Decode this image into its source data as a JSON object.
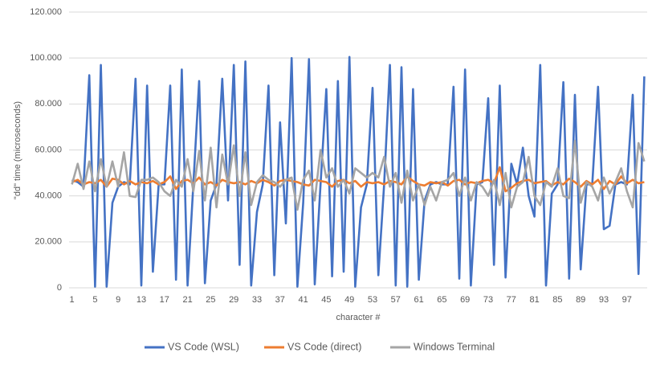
{
  "chart_data": {
    "type": "line",
    "x_label": "character #",
    "y_label": "\"dd\" time (microseconds)",
    "ylim": [
      0,
      120000
    ],
    "yticks": [
      0,
      {
        "value": 20000,
        "label": "20.000"
      },
      {
        "value": 40000,
        "label": "40.000"
      },
      {
        "value": 60000,
        "label": "60.000"
      },
      {
        "value": 80000,
        "label": "80.000"
      },
      {
        "value": 100000,
        "label": "100.000"
      },
      {
        "value": 120000,
        "label": "120.000"
      }
    ],
    "grid": true,
    "legend": "bottom",
    "categories": [
      "1",
      null,
      null,
      null,
      "5",
      null,
      null,
      null,
      "9",
      null,
      null,
      null,
      "13",
      null,
      null,
      null,
      "17",
      null,
      null,
      null,
      "21",
      null,
      null,
      null,
      "25",
      null,
      null,
      null,
      "29",
      null,
      null,
      null,
      "33",
      null,
      null,
      null,
      "37",
      null,
      null,
      null,
      "41",
      null,
      null,
      null,
      "45",
      null,
      null,
      null,
      "49",
      null,
      null,
      null,
      "53",
      null,
      null,
      null,
      "57",
      null,
      null,
      null,
      "61",
      null,
      null,
      null,
      "65",
      null,
      null,
      null,
      "69",
      null,
      null,
      null,
      "73",
      null,
      null,
      null,
      "77",
      null,
      null,
      null,
      "81",
      null,
      null,
      null,
      "85",
      null,
      null,
      null,
      "89",
      null,
      null,
      null,
      "93",
      null,
      null,
      null,
      "97",
      null,
      null,
      null
    ],
    "series": [
      {
        "name": "VS Code (WSL)",
        "color": "#4472c4",
        "values": [
          47000,
          46000,
          44000,
          92500,
          500,
          97000,
          500,
          37000,
          44000,
          46000,
          45000,
          91000,
          1000,
          88000,
          7000,
          45000,
          45000,
          88000,
          3500,
          95000,
          1000,
          45000,
          90000,
          2000,
          38000,
          45000,
          91000,
          38000,
          97000,
          10000,
          98500,
          1000,
          33000,
          45000,
          88000,
          5500,
          72000,
          28000,
          100000,
          500,
          37000,
          99500,
          1500,
          45000,
          86500,
          5000,
          90000,
          7000,
          100500,
          500,
          35000,
          45000,
          87000,
          5500,
          45000,
          97000,
          1000,
          96000,
          500,
          86500,
          3500,
          38000,
          45000,
          46000,
          45000,
          45000,
          87500,
          4000,
          95000,
          1000,
          45000,
          46000,
          82500,
          10000,
          88000,
          4500,
          54000,
          45000,
          61000,
          40000,
          31000,
          97000,
          1000,
          41000,
          45000,
          89500,
          4000,
          84000,
          8000,
          45000,
          45000,
          87500,
          25500,
          27000,
          45000,
          46000,
          45000,
          84000,
          6000,
          92000
        ]
      },
      {
        "name": "VS Code (direct)",
        "color": "#ed7d31",
        "values": [
          46000,
          47000,
          45000,
          46000,
          45500,
          47000,
          44000,
          47500,
          47000,
          45000,
          46500,
          45000,
          46000,
          45500,
          46500,
          45000,
          46000,
          48500,
          43000,
          46500,
          47000,
          45500,
          48000,
          45000,
          46000,
          44500,
          47000,
          46000,
          45500,
          46000,
          45000,
          46500,
          45500,
          47000,
          46000,
          44500,
          46500,
          47000,
          46500,
          46000,
          45000,
          44500,
          47000,
          46500,
          46000,
          44000,
          46500,
          47000,
          45500,
          46500,
          44000,
          46000,
          45500,
          46000,
          45000,
          46500,
          46000,
          45000,
          48500,
          46500,
          45000,
          44500,
          46000,
          45500,
          46000,
          44500,
          46500,
          47000,
          45000,
          46000,
          45500,
          46500,
          47000,
          45500,
          52500,
          42000,
          43500,
          45500,
          46500,
          47000,
          45500,
          46000,
          46500,
          44500,
          46000,
          45000,
          47500,
          46000,
          44000,
          46500,
          45000,
          47000,
          43000,
          46500,
          45000,
          48500,
          45500,
          47000,
          45500,
          46000
        ]
      },
      {
        "name": "Windows Terminal",
        "color": "#a5a5a5",
        "values": [
          45000,
          54000,
          43000,
          55000,
          42000,
          56000,
          44000,
          55000,
          44000,
          59000,
          40000,
          39500,
          47000,
          47000,
          48000,
          46000,
          42000,
          40000,
          47000,
          44000,
          56000,
          42000,
          59500,
          38000,
          61000,
          35000,
          58000,
          45000,
          62000,
          40000,
          59000,
          36000,
          46000,
          49000,
          47000,
          46000,
          44000,
          47000,
          48000,
          34000,
          47000,
          51000,
          38000,
          60000,
          48000,
          52000,
          44000,
          47000,
          41000,
          52000,
          50000,
          48000,
          50000,
          48000,
          57000,
          44000,
          50000,
          37000,
          51000,
          38000,
          45000,
          36000,
          44000,
          38000,
          46000,
          47000,
          50000,
          40000,
          48000,
          38000,
          46000,
          44000,
          40000,
          47000,
          36000,
          50000,
          35000,
          44000,
          46000,
          57000,
          40000,
          36000,
          46000,
          44000,
          52000,
          40000,
          39000,
          64000,
          37000,
          46000,
          44000,
          38000,
          48000,
          41000,
          46000,
          52000,
          42000,
          35000,
          63000,
          55000
        ]
      }
    ]
  }
}
